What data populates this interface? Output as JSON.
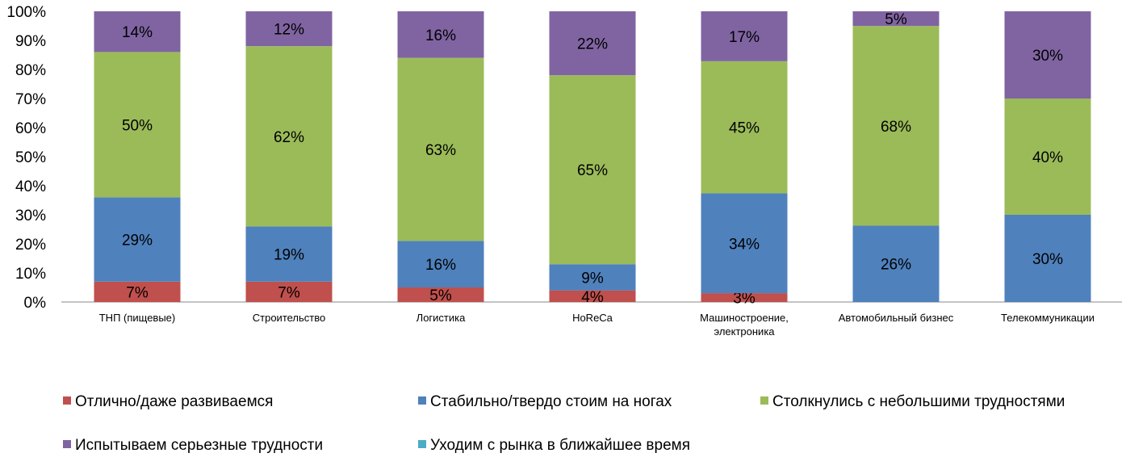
{
  "chart_data": {
    "type": "bar",
    "stacked": true,
    "percent": true,
    "title": "",
    "xlabel": "",
    "ylabel": "",
    "ylim": [
      0,
      100
    ],
    "yticks": [
      "0%",
      "10%",
      "20%",
      "30%",
      "40%",
      "50%",
      "60%",
      "70%",
      "80%",
      "90%",
      "100%"
    ],
    "categories": [
      [
        "ТНП (пищевые)"
      ],
      [
        "Строительство"
      ],
      [
        "Логистика"
      ],
      [
        "HoReCa"
      ],
      [
        "Машиностроение,",
        "электроника"
      ],
      [
        "Автомобильный  бизнес"
      ],
      [
        "Телекоммуникации"
      ]
    ],
    "series": [
      {
        "name": "Отлично/даже  развиваемся",
        "color": "#C0504D",
        "values": [
          7,
          7,
          5,
          4,
          3,
          0,
          0
        ]
      },
      {
        "name": "Стабильно/твердо  стоим  на ногах",
        "color": "#4F81BD",
        "values": [
          29,
          19,
          16,
          9,
          34,
          26,
          30
        ]
      },
      {
        "name": "Столкнулись  с небольшими трудностями",
        "color": "#9BBB59",
        "values": [
          50,
          62,
          63,
          65,
          45,
          68,
          40
        ]
      },
      {
        "name": "Испытываем  серьезные  трудности",
        "color": "#8064A2",
        "values": [
          14,
          12,
          16,
          22,
          17,
          5,
          30
        ]
      },
      {
        "name": "Уходим  с рынка в ближайшее  время",
        "color": "#4BACC6",
        "values": [
          0,
          0,
          0,
          0,
          0,
          0,
          0
        ]
      }
    ],
    "legend_position": "bottom",
    "grid": false
  }
}
